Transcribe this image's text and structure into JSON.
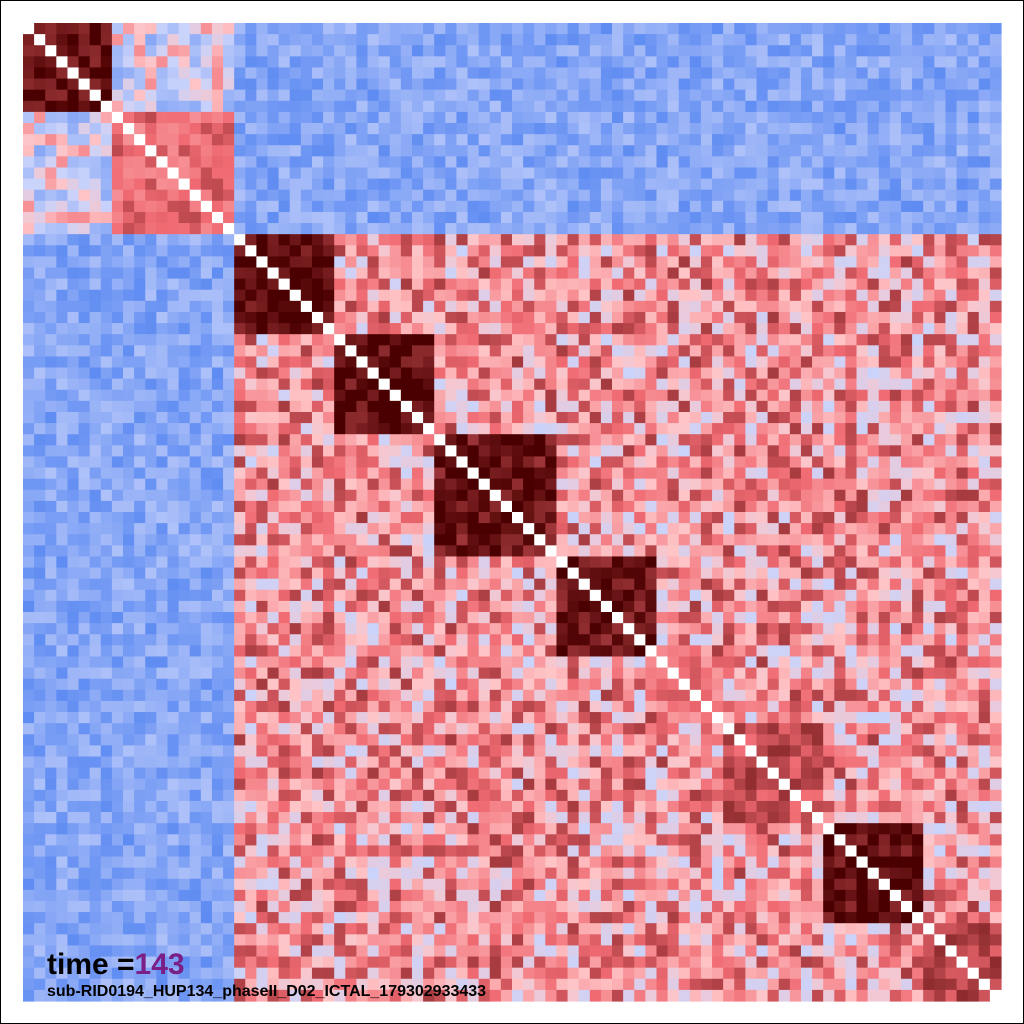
{
  "annotation": {
    "time_prefix": "time =",
    "time_value": "143",
    "filename": "sub-RID0194_HUP134_phaseII_D02_ICTAL_179302933433"
  },
  "colors": {
    "negative_light": "#c9d3fb",
    "negative": "#5f8cf2",
    "positive_light": "#ffc4c6",
    "positive": "#f06a72",
    "strong_positive": "#4a0000",
    "diagonal": "#ffffff",
    "time_value": "#7a1f85"
  },
  "chart_data": {
    "type": "heatmap",
    "title": "",
    "xlabel": "",
    "ylabel": "",
    "n": 88,
    "colormap": [
      "#5f8cf2",
      "#c9d3fb",
      "#ffc4c6",
      "#f06a72",
      "#4a0000"
    ],
    "value_range": [
      -1,
      1
    ],
    "diagonal_value": 1,
    "blocks": [
      {
        "range": [
          0,
          8
        ],
        "level": 0.95
      },
      {
        "range": [
          8,
          19
        ],
        "level": 0.45
      },
      {
        "range": [
          19,
          28
        ],
        "level": 0.95
      },
      {
        "range": [
          28,
          37
        ],
        "level": 0.95
      },
      {
        "range": [
          37,
          48
        ],
        "level": 0.9
      },
      {
        "range": [
          48,
          57
        ],
        "level": 0.9
      },
      {
        "range": [
          57,
          63
        ],
        "level": 0.4
      },
      {
        "range": [
          63,
          72
        ],
        "level": 0.6
      },
      {
        "range": [
          72,
          81
        ],
        "level": 0.95
      },
      {
        "range": [
          81,
          88
        ],
        "level": 0.6
      }
    ],
    "regions": {
      "group_a": [
        0,
        19
      ],
      "group_b": [
        19,
        88
      ]
    },
    "between_group_level": -0.7,
    "within_group_a_level": -0.2,
    "within_group_b_level": 0.25
  }
}
